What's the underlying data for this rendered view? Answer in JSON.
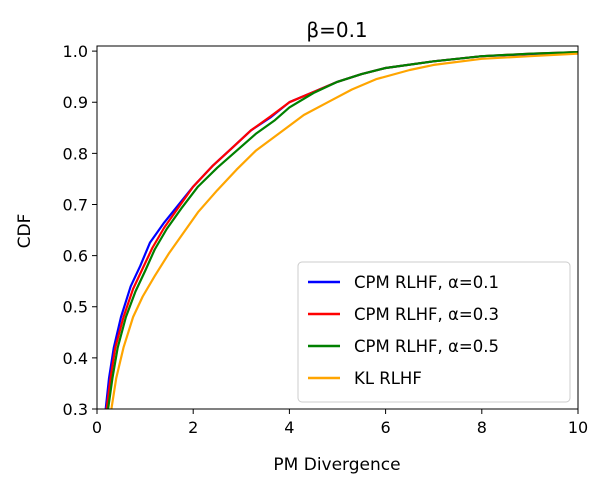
{
  "chart_data": {
    "type": "line",
    "title": "β=0.1",
    "xlabel": "PM Divergence",
    "ylabel": "CDF",
    "xlim": [
      0,
      10
    ],
    "ylim": [
      0.3,
      1.01
    ],
    "xticks": [
      "0",
      "2",
      "4",
      "6",
      "8",
      "10"
    ],
    "xtick_values": [
      0,
      2,
      4,
      6,
      8,
      10
    ],
    "yticks": [
      "0.3",
      "0.4",
      "0.5",
      "0.6",
      "0.7",
      "0.8",
      "0.9",
      "1.0"
    ],
    "ytick_values": [
      0.3,
      0.4,
      0.5,
      0.6,
      0.7,
      0.8,
      0.9,
      1.0
    ],
    "grid": false,
    "legend_position": "lower-right",
    "series": [
      {
        "name": "CPM RLHF, α=0.1",
        "color": "#0000ff",
        "points": [
          [
            0.18,
            0.3
          ],
          [
            0.25,
            0.36
          ],
          [
            0.35,
            0.42
          ],
          [
            0.5,
            0.48
          ],
          [
            0.7,
            0.54
          ],
          [
            0.9,
            0.58
          ],
          [
            1.1,
            0.625
          ],
          [
            1.4,
            0.665
          ],
          [
            1.7,
            0.7
          ],
          [
            2.0,
            0.735
          ],
          [
            2.4,
            0.775
          ],
          [
            2.8,
            0.81
          ],
          [
            3.2,
            0.845
          ],
          [
            3.6,
            0.87
          ],
          [
            4.0,
            0.9
          ],
          [
            4.5,
            0.92
          ],
          [
            5.0,
            0.94
          ],
          [
            5.5,
            0.955
          ],
          [
            6.0,
            0.967
          ],
          [
            7.0,
            0.98
          ],
          [
            8.0,
            0.99
          ],
          [
            9.0,
            0.994
          ],
          [
            10.0,
            0.998
          ]
        ]
      },
      {
        "name": "CPM RLHF, α=0.3",
        "color": "#ff0000",
        "points": [
          [
            0.2,
            0.3
          ],
          [
            0.28,
            0.36
          ],
          [
            0.38,
            0.42
          ],
          [
            0.55,
            0.48
          ],
          [
            0.75,
            0.535
          ],
          [
            0.95,
            0.575
          ],
          [
            1.15,
            0.615
          ],
          [
            1.4,
            0.655
          ],
          [
            1.7,
            0.695
          ],
          [
            2.0,
            0.735
          ],
          [
            2.4,
            0.775
          ],
          [
            2.8,
            0.81
          ],
          [
            3.2,
            0.845
          ],
          [
            3.6,
            0.872
          ],
          [
            4.0,
            0.9
          ],
          [
            4.5,
            0.92
          ],
          [
            5.0,
            0.94
          ],
          [
            5.5,
            0.955
          ],
          [
            6.0,
            0.967
          ],
          [
            7.0,
            0.98
          ],
          [
            8.0,
            0.99
          ],
          [
            9.0,
            0.995
          ],
          [
            10.0,
            0.998
          ]
        ]
      },
      {
        "name": "CPM RLHF, α=0.5",
        "color": "#008000",
        "points": [
          [
            0.23,
            0.3
          ],
          [
            0.32,
            0.36
          ],
          [
            0.43,
            0.42
          ],
          [
            0.6,
            0.48
          ],
          [
            0.8,
            0.53
          ],
          [
            1.0,
            0.57
          ],
          [
            1.2,
            0.612
          ],
          [
            1.45,
            0.652
          ],
          [
            1.75,
            0.692
          ],
          [
            2.1,
            0.735
          ],
          [
            2.5,
            0.772
          ],
          [
            2.9,
            0.805
          ],
          [
            3.3,
            0.838
          ],
          [
            3.7,
            0.865
          ],
          [
            4.0,
            0.89
          ],
          [
            4.5,
            0.918
          ],
          [
            5.0,
            0.94
          ],
          [
            5.5,
            0.955
          ],
          [
            6.0,
            0.967
          ],
          [
            7.0,
            0.98
          ],
          [
            8.0,
            0.99
          ],
          [
            9.0,
            0.995
          ],
          [
            10.0,
            0.998
          ]
        ]
      },
      {
        "name": "KL RLHF",
        "color": "#ffa500",
        "points": [
          [
            0.3,
            0.3
          ],
          [
            0.4,
            0.36
          ],
          [
            0.55,
            0.42
          ],
          [
            0.75,
            0.48
          ],
          [
            0.95,
            0.52
          ],
          [
            1.2,
            0.56
          ],
          [
            1.5,
            0.605
          ],
          [
            1.8,
            0.645
          ],
          [
            2.1,
            0.685
          ],
          [
            2.5,
            0.728
          ],
          [
            2.9,
            0.768
          ],
          [
            3.3,
            0.805
          ],
          [
            3.8,
            0.84
          ],
          [
            4.3,
            0.875
          ],
          [
            4.8,
            0.9
          ],
          [
            5.3,
            0.925
          ],
          [
            5.8,
            0.945
          ],
          [
            6.5,
            0.963
          ],
          [
            7.0,
            0.973
          ],
          [
            8.0,
            0.985
          ],
          [
            9.0,
            0.99
          ],
          [
            10.0,
            0.995
          ]
        ]
      }
    ]
  }
}
